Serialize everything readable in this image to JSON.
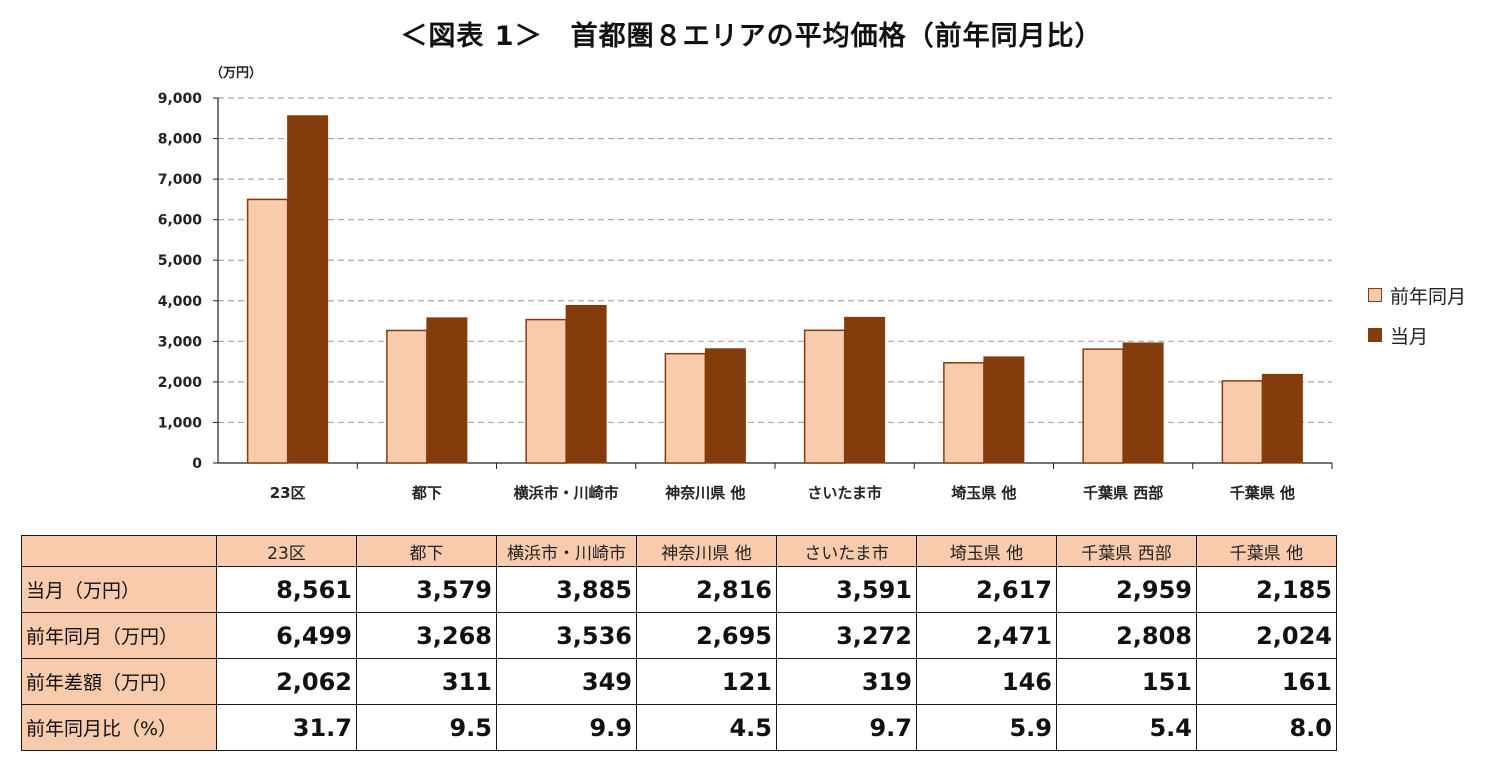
{
  "title": "＜図表 1＞　首都圏８エリアの平均価格（前年同月比）",
  "colors": {
    "prev": "#f8cbad",
    "prev_border": "#843c0c",
    "curr": "#843c0c",
    "grid": "#a6a6a6"
  },
  "chart_data": {
    "type": "bar",
    "title": "＜図表 1＞　首都圏８エリアの平均価格（前年同月比）",
    "unit_label": "（万円）",
    "categories": [
      "23区",
      "都下",
      "横浜市・川崎市",
      "神奈川県 他",
      "さいたま市",
      "埼玉県 他",
      "千葉県 西部",
      "千葉県 他"
    ],
    "series": [
      {
        "name": "前年同月",
        "values": [
          6499,
          3268,
          3536,
          2695,
          3272,
          2471,
          2808,
          2024
        ]
      },
      {
        "name": "当月",
        "values": [
          8561,
          3579,
          3885,
          2816,
          3591,
          2617,
          2959,
          2185
        ]
      }
    ],
    "ylim": [
      0,
      9000
    ],
    "yticks": [
      "0",
      "1,000",
      "2,000",
      "3,000",
      "4,000",
      "5,000",
      "6,000",
      "7,000",
      "8,000",
      "9,000"
    ],
    "grid": true,
    "legend_position": "right"
  },
  "table": {
    "headers": [
      "23区",
      "都下",
      "横浜市・川崎市",
      "神奈川県 他",
      "さいたま市",
      "埼玉県 他",
      "千葉県 西部",
      "千葉県 他"
    ],
    "rows": [
      {
        "label": "当月（万円）",
        "values": [
          "8,561",
          "3,579",
          "3,885",
          "2,816",
          "3,591",
          "2,617",
          "2,959",
          "2,185"
        ]
      },
      {
        "label": "前年同月（万円）",
        "values": [
          "6,499",
          "3,268",
          "3,536",
          "2,695",
          "3,272",
          "2,471",
          "2,808",
          "2,024"
        ]
      },
      {
        "label": "前年差額（万円）",
        "values": [
          "2,062",
          "311",
          "349",
          "121",
          "319",
          "146",
          "151",
          "161"
        ]
      },
      {
        "label": "前年同月比（%）",
        "values": [
          "31.7",
          "9.5",
          "9.9",
          "4.5",
          "9.7",
          "5.9",
          "5.4",
          "8.0"
        ]
      }
    ]
  }
}
